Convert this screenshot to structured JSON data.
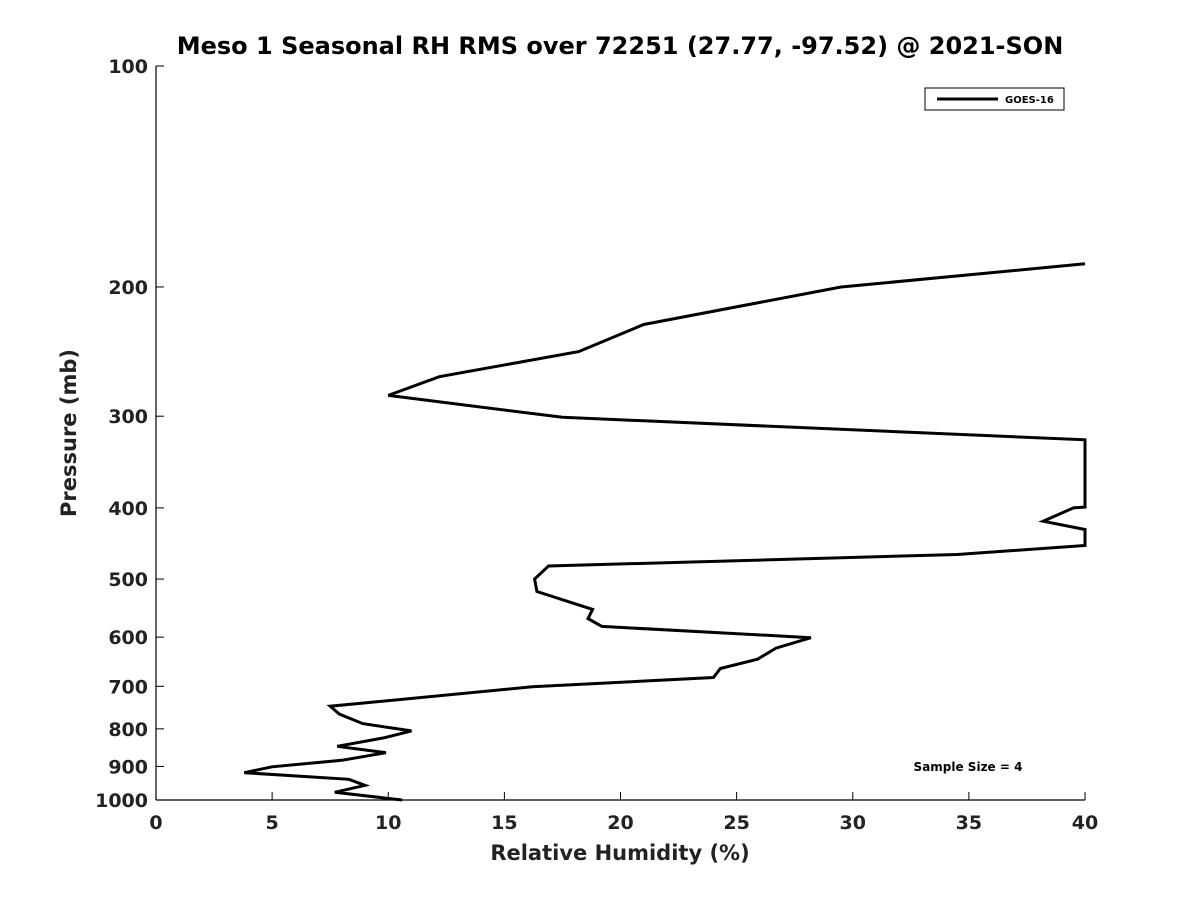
{
  "chart_data": {
    "type": "line",
    "title": "Meso 1 Seasonal RH RMS over 72251 (27.77, -97.52) @ 2021-SON",
    "xlabel": "Relative Humidity (%)",
    "ylabel": "Pressure (mb)",
    "xlim": [
      0,
      40
    ],
    "ylim": [
      100,
      1000
    ],
    "y_scale": "log",
    "y_reversed": true,
    "x_ticks": [
      "0",
      "5",
      "10",
      "15",
      "20",
      "25",
      "30",
      "35",
      "40"
    ],
    "y_ticks": [
      "100",
      "200",
      "300",
      "400",
      "500",
      "600",
      "700",
      "800",
      "900",
      "1000"
    ],
    "grid": false,
    "legend": {
      "placement": "top-right",
      "entries": [
        "GOES-16"
      ]
    },
    "annotation": "Sample Size = 4",
    "series": [
      {
        "name": "GOES-16",
        "color": "#000000",
        "points": [
          [
            40.0,
            186
          ],
          [
            29.5,
            200
          ],
          [
            21.0,
            225
          ],
          [
            18.2,
            245
          ],
          [
            12.2,
            265
          ],
          [
            10.0,
            281
          ],
          [
            17.5,
            301
          ],
          [
            40.0,
            323
          ],
          [
            40.0,
            399
          ],
          [
            39.5,
            400
          ],
          [
            38.2,
            417
          ],
          [
            40.0,
            428
          ],
          [
            40.0,
            450
          ],
          [
            34.5,
            463
          ],
          [
            16.9,
            480
          ],
          [
            16.3,
            500
          ],
          [
            16.4,
            520
          ],
          [
            18.8,
            550
          ],
          [
            18.6,
            566
          ],
          [
            19.2,
            580
          ],
          [
            28.2,
            601
          ],
          [
            26.7,
            621
          ],
          [
            25.9,
            643
          ],
          [
            24.3,
            662
          ],
          [
            24.0,
            681
          ],
          [
            16.2,
            701
          ],
          [
            7.5,
            745
          ],
          [
            7.9,
            764
          ],
          [
            8.9,
            787
          ],
          [
            11.0,
            805
          ],
          [
            9.8,
            823
          ],
          [
            7.8,
            845
          ],
          [
            9.9,
            862
          ],
          [
            8.0,
            883
          ],
          [
            5.0,
            901
          ],
          [
            3.8,
            918
          ],
          [
            8.3,
            937
          ],
          [
            9.0,
            955
          ],
          [
            7.7,
            976
          ],
          [
            10.6,
            1000
          ]
        ]
      }
    ]
  }
}
